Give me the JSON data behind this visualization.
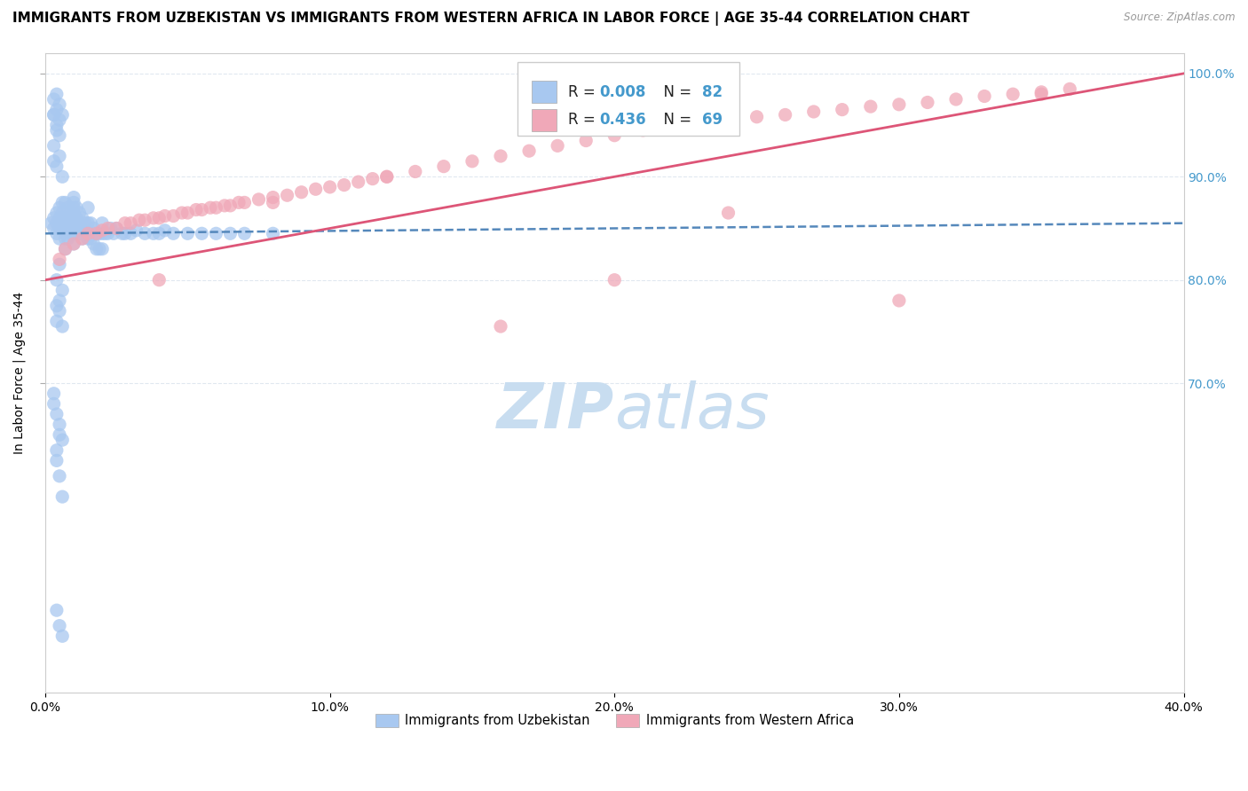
{
  "title": "IMMIGRANTS FROM UZBEKISTAN VS IMMIGRANTS FROM WESTERN AFRICA IN LABOR FORCE | AGE 35-44 CORRELATION CHART",
  "source": "Source: ZipAtlas.com",
  "ylabel": "In Labor Force | Age 35-44",
  "xlim": [
    0.0,
    0.4
  ],
  "ylim": [
    0.4,
    1.02
  ],
  "xtick_labels": [
    "0.0%",
    "10.0%",
    "20.0%",
    "30.0%",
    "40.0%"
  ],
  "xtick_vals": [
    0.0,
    0.1,
    0.2,
    0.3,
    0.4
  ],
  "ytick_labels": [
    "70.0%",
    "80.0%",
    "90.0%",
    "100.0%"
  ],
  "ytick_vals": [
    0.7,
    0.8,
    0.9,
    1.0
  ],
  "color_uzbekistan": "#a8c8f0",
  "color_western_africa": "#f0a8b8",
  "trend_uzbekistan_color": "#5588bb",
  "trend_western_africa_color": "#dd5577",
  "label_uzbekistan": "Immigrants from Uzbekistan",
  "label_western_africa": "Immigrants from Western Africa",
  "background_color": "#ffffff",
  "grid_color": "#e0e8f0",
  "watermark_color": "#c8ddf0",
  "right_ytick_color": "#4499cc",
  "title_fontsize": 11,
  "axis_label_fontsize": 10,
  "tick_fontsize": 10,
  "legend_r_uzbekistan": "0.008",
  "legend_n_uzbekistan": "82",
  "legend_r_western_africa": "0.436",
  "legend_n_western_africa": "69",
  "uz_x": [
    0.002,
    0.003,
    0.003,
    0.004,
    0.004,
    0.004,
    0.005,
    0.005,
    0.005,
    0.005,
    0.006,
    0.006,
    0.006,
    0.007,
    0.007,
    0.007,
    0.007,
    0.007,
    0.008,
    0.008,
    0.008,
    0.008,
    0.009,
    0.009,
    0.009,
    0.01,
    0.01,
    0.01,
    0.01,
    0.01,
    0.01,
    0.01,
    0.01,
    0.011,
    0.011,
    0.011,
    0.012,
    0.012,
    0.012,
    0.013,
    0.013,
    0.013,
    0.014,
    0.014,
    0.015,
    0.015,
    0.015,
    0.016,
    0.016,
    0.017,
    0.017,
    0.018,
    0.018,
    0.019,
    0.019,
    0.02,
    0.02,
    0.02,
    0.021,
    0.022,
    0.023,
    0.024,
    0.025,
    0.027,
    0.028,
    0.03,
    0.032,
    0.035,
    0.038,
    0.04,
    0.042,
    0.045,
    0.05,
    0.055,
    0.06,
    0.065,
    0.07,
    0.08,
    0.005,
    0.003,
    0.004,
    0.006
  ],
  "uz_y": [
    0.855,
    0.86,
    0.85,
    0.865,
    0.855,
    0.845,
    0.87,
    0.86,
    0.85,
    0.84,
    0.875,
    0.865,
    0.855,
    0.875,
    0.86,
    0.85,
    0.84,
    0.83,
    0.87,
    0.86,
    0.85,
    0.84,
    0.865,
    0.855,
    0.845,
    0.88,
    0.875,
    0.865,
    0.855,
    0.845,
    0.835,
    0.87,
    0.86,
    0.87,
    0.86,
    0.85,
    0.865,
    0.855,
    0.845,
    0.86,
    0.85,
    0.84,
    0.855,
    0.845,
    0.87,
    0.855,
    0.84,
    0.855,
    0.84,
    0.85,
    0.835,
    0.845,
    0.83,
    0.845,
    0.83,
    0.855,
    0.845,
    0.83,
    0.845,
    0.845,
    0.85,
    0.845,
    0.85,
    0.845,
    0.845,
    0.845,
    0.848,
    0.845,
    0.845,
    0.845,
    0.848,
    0.845,
    0.845,
    0.845,
    0.845,
    0.845,
    0.845,
    0.845,
    0.92,
    0.915,
    0.91,
    0.9
  ],
  "uz_y_outliers": [
    0.67,
    0.66,
    0.68,
    0.645,
    0.65,
    0.635,
    0.69,
    0.625,
    0.61,
    0.59,
    0.465,
    0.48,
    0.455,
    0.76,
    0.77,
    0.755,
    0.775,
    0.78,
    0.79,
    0.8,
    0.815,
    0.96,
    0.95,
    0.94,
    0.96,
    0.965,
    0.955,
    0.975,
    0.98,
    0.97,
    0.96,
    0.945,
    0.93
  ],
  "uz_x_outliers": [
    0.004,
    0.005,
    0.003,
    0.006,
    0.005,
    0.004,
    0.003,
    0.004,
    0.005,
    0.006,
    0.005,
    0.004,
    0.006,
    0.004,
    0.005,
    0.006,
    0.004,
    0.005,
    0.006,
    0.004,
    0.005,
    0.003,
    0.004,
    0.005,
    0.003,
    0.004,
    0.005,
    0.003,
    0.004,
    0.005,
    0.006,
    0.004,
    0.003
  ],
  "wa_x": [
    0.005,
    0.007,
    0.01,
    0.013,
    0.015,
    0.018,
    0.02,
    0.022,
    0.025,
    0.028,
    0.03,
    0.033,
    0.035,
    0.038,
    0.04,
    0.042,
    0.045,
    0.048,
    0.05,
    0.053,
    0.055,
    0.058,
    0.06,
    0.063,
    0.065,
    0.068,
    0.07,
    0.075,
    0.08,
    0.085,
    0.09,
    0.095,
    0.1,
    0.105,
    0.11,
    0.115,
    0.12,
    0.13,
    0.14,
    0.15,
    0.16,
    0.17,
    0.18,
    0.19,
    0.2,
    0.21,
    0.22,
    0.23,
    0.24,
    0.25,
    0.26,
    0.27,
    0.28,
    0.29,
    0.3,
    0.31,
    0.32,
    0.33,
    0.34,
    0.35,
    0.36,
    0.04,
    0.08,
    0.12,
    0.16,
    0.2,
    0.24,
    0.3,
    0.35
  ],
  "wa_y": [
    0.82,
    0.83,
    0.835,
    0.84,
    0.845,
    0.845,
    0.848,
    0.85,
    0.85,
    0.855,
    0.855,
    0.858,
    0.858,
    0.86,
    0.86,
    0.862,
    0.862,
    0.865,
    0.865,
    0.868,
    0.868,
    0.87,
    0.87,
    0.872,
    0.872,
    0.875,
    0.875,
    0.878,
    0.88,
    0.882,
    0.885,
    0.888,
    0.89,
    0.892,
    0.895,
    0.898,
    0.9,
    0.905,
    0.91,
    0.915,
    0.92,
    0.925,
    0.93,
    0.935,
    0.94,
    0.945,
    0.948,
    0.95,
    0.955,
    0.958,
    0.96,
    0.963,
    0.965,
    0.968,
    0.97,
    0.972,
    0.975,
    0.978,
    0.98,
    0.982,
    0.985,
    0.8,
    0.875,
    0.9,
    0.755,
    0.8,
    0.865,
    0.78,
    0.98
  ],
  "uz_trend_x0": 0.0,
  "uz_trend_x1": 0.4,
  "uz_trend_y0": 0.845,
  "uz_trend_y1": 0.855,
  "wa_trend_x0": 0.0,
  "wa_trend_x1": 0.4,
  "wa_trend_y0": 0.8,
  "wa_trend_y1": 1.0
}
